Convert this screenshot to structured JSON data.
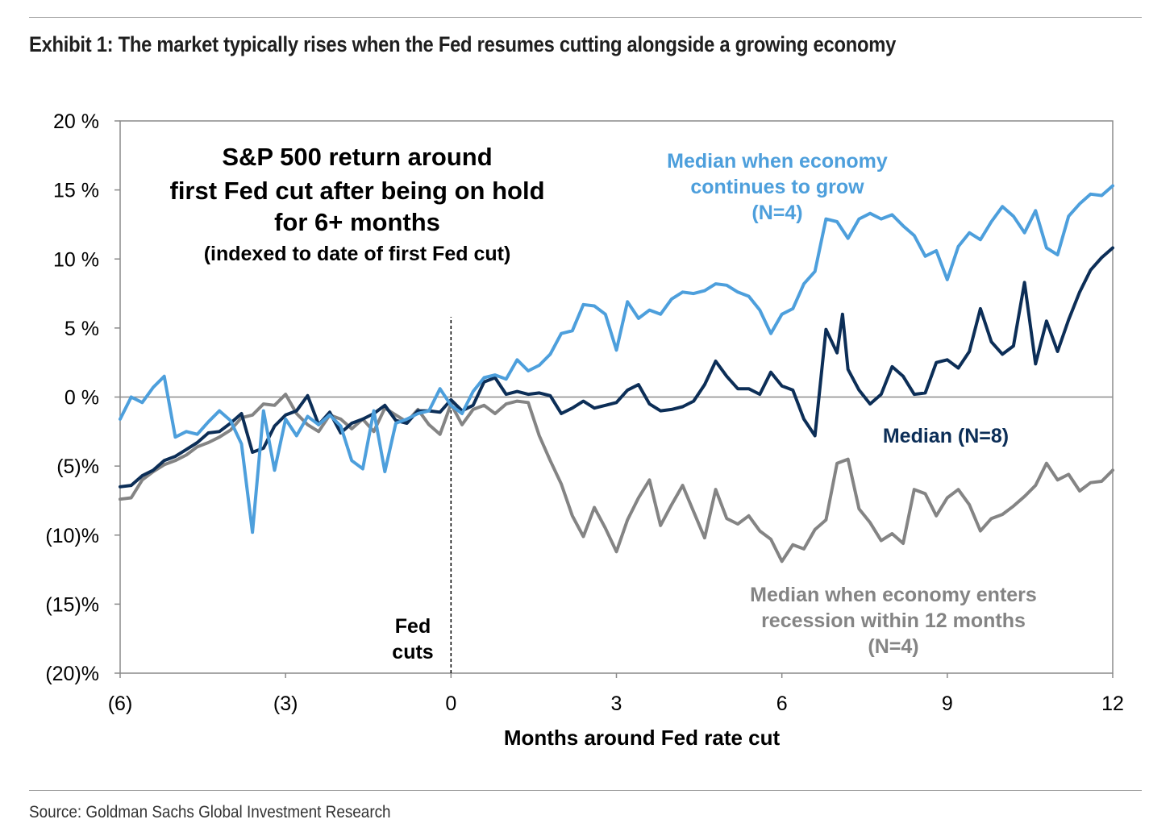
{
  "header": {
    "title": "Exhibit 1: The market typically rises when the Fed resumes cutting alongside a growing economy"
  },
  "footer": {
    "source": "Source: Goldman Sachs Global Investment Research"
  },
  "colors": {
    "growing": "#4d9fdc",
    "median": "#0c2e57",
    "recession": "#848484",
    "axis": "#7f7f7f",
    "text": "#000000"
  },
  "chart_data": {
    "type": "line",
    "title": "S&P 500 return around first Fed cut after being on hold for 6+ months",
    "title_lines": [
      "S&P 500 return around",
      "first Fed cut after being on hold",
      "for 6+ months"
    ],
    "subtitle": "(indexed to date of first Fed cut)",
    "xlabel": "Months around Fed rate cut",
    "ylabel": "",
    "xlim": [
      -6,
      12
    ],
    "ylim": [
      -20,
      20
    ],
    "x_ticks": [
      -6,
      -3,
      0,
      3,
      6,
      9,
      12
    ],
    "x_tick_labels": [
      "(6)",
      "(3)",
      "0",
      "3",
      "6",
      "9",
      "12"
    ],
    "y_ticks": [
      20,
      15,
      10,
      5,
      0,
      -5,
      -10,
      -15,
      -20
    ],
    "y_tick_labels": [
      "20 %",
      "15 %",
      "10 %",
      "5 %",
      "0 %",
      "(5)%",
      "(10)%",
      "(15)%",
      "(20)%"
    ],
    "grid": false,
    "zero_line": true,
    "annotation": {
      "x": 0,
      "label_lines": [
        "Fed",
        "cuts"
      ]
    },
    "series_labels": {
      "growing": [
        "Median when economy",
        "continues to grow",
        "(N=4)"
      ],
      "median": [
        "Median (N=8)"
      ],
      "recession": [
        "Median when economy enters",
        "recession within 12 months",
        "(N=4)"
      ]
    },
    "series": [
      {
        "key": "recession",
        "name": "Median when economy enters recession within 12 months (N=4)",
        "points": [
          [
            -6,
            -7.4
          ],
          [
            -5.8,
            -7.3
          ],
          [
            -5.6,
            -6.0
          ],
          [
            -5.4,
            -5.4
          ],
          [
            -5.2,
            -4.9
          ],
          [
            -5,
            -4.6
          ],
          [
            -4.8,
            -4.2
          ],
          [
            -4.6,
            -3.6
          ],
          [
            -4.4,
            -3.3
          ],
          [
            -4.2,
            -2.9
          ],
          [
            -4,
            -2.4
          ],
          [
            -3.8,
            -1.5
          ],
          [
            -3.6,
            -1.3
          ],
          [
            -3.4,
            -0.5
          ],
          [
            -3.2,
            -0.6
          ],
          [
            -3,
            0.2
          ],
          [
            -2.8,
            -1.2
          ],
          [
            -2.6,
            -2.0
          ],
          [
            -2.4,
            -2.5
          ],
          [
            -2.2,
            -1.3
          ],
          [
            -2,
            -1.6
          ],
          [
            -1.8,
            -2.3
          ],
          [
            -1.6,
            -1.6
          ],
          [
            -1.4,
            -2.5
          ],
          [
            -1.2,
            -0.8
          ],
          [
            -1,
            -1.3
          ],
          [
            -0.8,
            -1.8
          ],
          [
            -0.6,
            -0.9
          ],
          [
            -0.4,
            -2.0
          ],
          [
            -0.2,
            -2.7
          ],
          [
            0,
            -0.5
          ],
          [
            0.2,
            -2.0
          ],
          [
            0.4,
            -0.9
          ],
          [
            0.6,
            -0.6
          ],
          [
            0.8,
            -1.2
          ],
          [
            1,
            -0.5
          ],
          [
            1.2,
            -0.3
          ],
          [
            1.4,
            -0.4
          ],
          [
            1.6,
            -2.8
          ],
          [
            1.8,
            -4.6
          ],
          [
            2,
            -6.3
          ],
          [
            2.2,
            -8.6
          ],
          [
            2.4,
            -10.1
          ],
          [
            2.6,
            -8.0
          ],
          [
            2.8,
            -9.5
          ],
          [
            3,
            -11.2
          ],
          [
            3.2,
            -8.9
          ],
          [
            3.4,
            -7.3
          ],
          [
            3.6,
            -6.0
          ],
          [
            3.8,
            -9.3
          ],
          [
            4,
            -7.8
          ],
          [
            4.2,
            -6.4
          ],
          [
            4.4,
            -8.3
          ],
          [
            4.6,
            -10.2
          ],
          [
            4.8,
            -6.7
          ],
          [
            5,
            -8.8
          ],
          [
            5.2,
            -9.2
          ],
          [
            5.4,
            -8.6
          ],
          [
            5.6,
            -9.7
          ],
          [
            5.8,
            -10.3
          ],
          [
            6,
            -11.9
          ],
          [
            6.2,
            -10.7
          ],
          [
            6.4,
            -11.0
          ],
          [
            6.6,
            -9.6
          ],
          [
            6.8,
            -8.9
          ],
          [
            7,
            -4.8
          ],
          [
            7.2,
            -4.5
          ],
          [
            7.4,
            -8.1
          ],
          [
            7.6,
            -9.1
          ],
          [
            7.8,
            -10.4
          ],
          [
            8,
            -9.9
          ],
          [
            8.2,
            -10.6
          ],
          [
            8.4,
            -6.7
          ],
          [
            8.6,
            -7.0
          ],
          [
            8.8,
            -8.6
          ],
          [
            9,
            -7.3
          ],
          [
            9.2,
            -6.7
          ],
          [
            9.4,
            -7.8
          ],
          [
            9.6,
            -9.7
          ],
          [
            9.8,
            -8.8
          ],
          [
            10,
            -8.5
          ],
          [
            10.2,
            -7.9
          ],
          [
            10.4,
            -7.2
          ],
          [
            10.6,
            -6.4
          ],
          [
            10.8,
            -4.8
          ],
          [
            11,
            -6.0
          ],
          [
            11.2,
            -5.6
          ],
          [
            11.4,
            -6.8
          ],
          [
            11.6,
            -6.2
          ],
          [
            11.8,
            -6.1
          ],
          [
            12,
            -5.3
          ]
        ]
      },
      {
        "key": "median",
        "name": "Median (N=8)",
        "points": [
          [
            -6,
            -6.5
          ],
          [
            -5.8,
            -6.4
          ],
          [
            -5.6,
            -5.7
          ],
          [
            -5.4,
            -5.3
          ],
          [
            -5.2,
            -4.6
          ],
          [
            -5,
            -4.3
          ],
          [
            -4.8,
            -3.8
          ],
          [
            -4.6,
            -3.3
          ],
          [
            -4.4,
            -2.6
          ],
          [
            -4.2,
            -2.5
          ],
          [
            -4,
            -1.9
          ],
          [
            -3.8,
            -1.2
          ],
          [
            -3.6,
            -4.0
          ],
          [
            -3.4,
            -3.7
          ],
          [
            -3.2,
            -2.1
          ],
          [
            -3,
            -1.3
          ],
          [
            -2.8,
            -1.0
          ],
          [
            -2.6,
            0.1
          ],
          [
            -2.4,
            -2.0
          ],
          [
            -2.2,
            -1.1
          ],
          [
            -2,
            -2.6
          ],
          [
            -1.8,
            -1.9
          ],
          [
            -1.6,
            -1.6
          ],
          [
            -1.4,
            -1.2
          ],
          [
            -1.2,
            -0.6
          ],
          [
            -1,
            -1.7
          ],
          [
            -0.8,
            -1.9
          ],
          [
            -0.6,
            -1.0
          ],
          [
            -0.4,
            -1.0
          ],
          [
            -0.2,
            -1.1
          ],
          [
            0,
            -0.2
          ],
          [
            0.2,
            -1.0
          ],
          [
            0.4,
            -0.6
          ],
          [
            0.6,
            1.1
          ],
          [
            0.8,
            1.4
          ],
          [
            1,
            0.2
          ],
          [
            1.2,
            0.4
          ],
          [
            1.4,
            0.2
          ],
          [
            1.6,
            0.3
          ],
          [
            1.8,
            0.1
          ],
          [
            2,
            -1.2
          ],
          [
            2.2,
            -0.8
          ],
          [
            2.4,
            -0.3
          ],
          [
            2.6,
            -0.8
          ],
          [
            2.8,
            -0.6
          ],
          [
            3,
            -0.4
          ],
          [
            3.2,
            0.5
          ],
          [
            3.4,
            0.9
          ],
          [
            3.6,
            -0.5
          ],
          [
            3.8,
            -1.0
          ],
          [
            4,
            -0.9
          ],
          [
            4.2,
            -0.7
          ],
          [
            4.4,
            -0.3
          ],
          [
            4.6,
            0.9
          ],
          [
            4.8,
            2.6
          ],
          [
            5,
            1.5
          ],
          [
            5.2,
            0.6
          ],
          [
            5.4,
            0.6
          ],
          [
            5.6,
            0.2
          ],
          [
            5.8,
            1.8
          ],
          [
            6,
            0.8
          ],
          [
            6.2,
            0.5
          ],
          [
            6.4,
            -1.6
          ],
          [
            6.6,
            -2.8
          ],
          [
            6.8,
            4.9
          ],
          [
            7,
            3.2
          ],
          [
            7.1,
            6.0
          ],
          [
            7.2,
            2.0
          ],
          [
            7.4,
            0.5
          ],
          [
            7.6,
            -0.5
          ],
          [
            7.8,
            0.2
          ],
          [
            8,
            2.2
          ],
          [
            8.2,
            1.5
          ],
          [
            8.4,
            0.2
          ],
          [
            8.6,
            0.3
          ],
          [
            8.8,
            2.5
          ],
          [
            9,
            2.7
          ],
          [
            9.2,
            2.1
          ],
          [
            9.4,
            3.3
          ],
          [
            9.6,
            6.4
          ],
          [
            9.8,
            4.0
          ],
          [
            10,
            3.1
          ],
          [
            10.2,
            3.7
          ],
          [
            10.4,
            8.3
          ],
          [
            10.6,
            2.4
          ],
          [
            10.8,
            5.5
          ],
          [
            11,
            3.3
          ],
          [
            11.2,
            5.6
          ],
          [
            11.4,
            7.6
          ],
          [
            11.6,
            9.2
          ],
          [
            11.8,
            10.1
          ],
          [
            12,
            10.8
          ]
        ]
      },
      {
        "key": "growing",
        "name": "Median when economy continues to grow (N=4)",
        "points": [
          [
            -6,
            -1.6
          ],
          [
            -5.8,
            0.0
          ],
          [
            -5.6,
            -0.4
          ],
          [
            -5.4,
            0.7
          ],
          [
            -5.2,
            1.5
          ],
          [
            -5,
            -2.9
          ],
          [
            -4.8,
            -2.5
          ],
          [
            -4.6,
            -2.7
          ],
          [
            -4.4,
            -1.8
          ],
          [
            -4.2,
            -1.0
          ],
          [
            -4,
            -1.7
          ],
          [
            -3.8,
            -3.4
          ],
          [
            -3.6,
            -9.8
          ],
          [
            -3.4,
            -1.0
          ],
          [
            -3.2,
            -5.3
          ],
          [
            -3,
            -1.6
          ],
          [
            -2.8,
            -2.8
          ],
          [
            -2.6,
            -1.4
          ],
          [
            -2.4,
            -2.0
          ],
          [
            -2.2,
            -1.3
          ],
          [
            -2,
            -2.1
          ],
          [
            -1.8,
            -4.6
          ],
          [
            -1.6,
            -5.2
          ],
          [
            -1.4,
            -1.0
          ],
          [
            -1.2,
            -5.4
          ],
          [
            -1,
            -1.9
          ],
          [
            -0.8,
            -1.6
          ],
          [
            -0.6,
            -1.2
          ],
          [
            -0.4,
            -1.0
          ],
          [
            -0.2,
            0.6
          ],
          [
            0,
            -0.6
          ],
          [
            0.2,
            -1.2
          ],
          [
            0.4,
            0.4
          ],
          [
            0.6,
            1.4
          ],
          [
            0.8,
            1.6
          ],
          [
            1,
            1.3
          ],
          [
            1.2,
            2.7
          ],
          [
            1.4,
            1.9
          ],
          [
            1.6,
            2.3
          ],
          [
            1.8,
            3.1
          ],
          [
            2,
            4.6
          ],
          [
            2.2,
            4.8
          ],
          [
            2.4,
            6.7
          ],
          [
            2.6,
            6.6
          ],
          [
            2.8,
            6.0
          ],
          [
            3,
            3.4
          ],
          [
            3.2,
            6.9
          ],
          [
            3.4,
            5.7
          ],
          [
            3.6,
            6.3
          ],
          [
            3.8,
            6.0
          ],
          [
            4,
            7.1
          ],
          [
            4.2,
            7.6
          ],
          [
            4.4,
            7.5
          ],
          [
            4.6,
            7.7
          ],
          [
            4.8,
            8.2
          ],
          [
            5,
            8.1
          ],
          [
            5.2,
            7.6
          ],
          [
            5.4,
            7.3
          ],
          [
            5.6,
            6.3
          ],
          [
            5.8,
            4.6
          ],
          [
            6,
            6.0
          ],
          [
            6.2,
            6.4
          ],
          [
            6.4,
            8.2
          ],
          [
            6.6,
            9.1
          ],
          [
            6.8,
            12.9
          ],
          [
            7,
            12.7
          ],
          [
            7.2,
            11.5
          ],
          [
            7.4,
            12.9
          ],
          [
            7.6,
            13.3
          ],
          [
            7.8,
            12.9
          ],
          [
            8,
            13.2
          ],
          [
            8.2,
            12.4
          ],
          [
            8.4,
            11.7
          ],
          [
            8.6,
            10.2
          ],
          [
            8.8,
            10.6
          ],
          [
            9,
            8.5
          ],
          [
            9.2,
            10.9
          ],
          [
            9.4,
            11.9
          ],
          [
            9.6,
            11.4
          ],
          [
            9.8,
            12.7
          ],
          [
            10,
            13.8
          ],
          [
            10.2,
            13.1
          ],
          [
            10.4,
            11.9
          ],
          [
            10.6,
            13.5
          ],
          [
            10.8,
            10.8
          ],
          [
            11,
            10.3
          ],
          [
            11.2,
            13.1
          ],
          [
            11.4,
            14.0
          ],
          [
            11.6,
            14.7
          ],
          [
            11.8,
            14.6
          ],
          [
            12,
            15.3
          ]
        ]
      }
    ]
  }
}
